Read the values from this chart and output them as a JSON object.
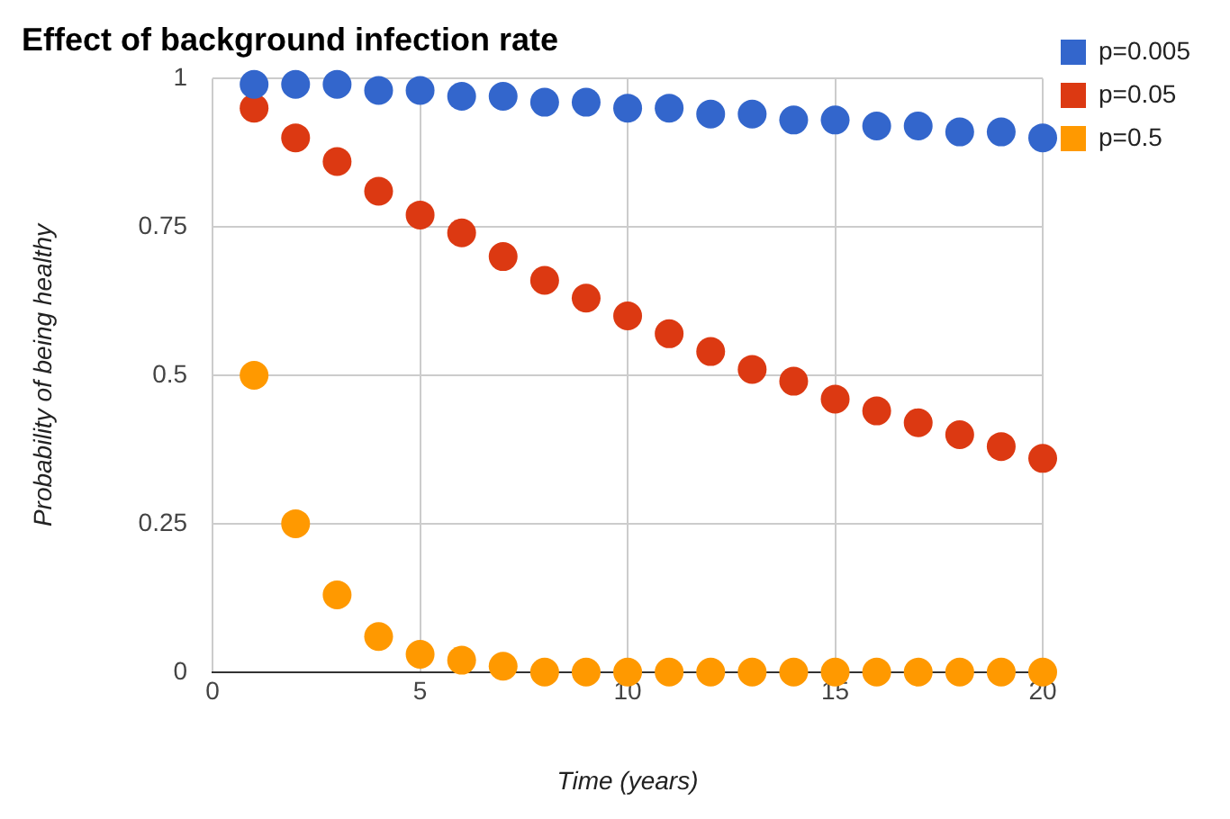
{
  "chart_data": {
    "type": "scatter",
    "title": "Effect of background infection rate",
    "xlabel": "Time (years)",
    "ylabel": "Probability of being healthy",
    "x": [
      1,
      2,
      3,
      4,
      5,
      6,
      7,
      8,
      9,
      10,
      11,
      12,
      13,
      14,
      15,
      16,
      17,
      18,
      19,
      20
    ],
    "series": [
      {
        "name": "p=0.005",
        "color": "#3366cc",
        "values": [
          0.99,
          0.99,
          0.99,
          0.98,
          0.98,
          0.97,
          0.97,
          0.96,
          0.96,
          0.95,
          0.95,
          0.94,
          0.94,
          0.93,
          0.93,
          0.92,
          0.92,
          0.91,
          0.91,
          0.9
        ]
      },
      {
        "name": "p=0.05",
        "color": "#dc3912",
        "values": [
          0.95,
          0.9,
          0.86,
          0.81,
          0.77,
          0.74,
          0.7,
          0.66,
          0.63,
          0.6,
          0.57,
          0.54,
          0.51,
          0.49,
          0.46,
          0.44,
          0.42,
          0.4,
          0.38,
          0.36
        ]
      },
      {
        "name": "p=0.5",
        "color": "#ff9900",
        "values": [
          0.5,
          0.25,
          0.13,
          0.06,
          0.03,
          0.02,
          0.01,
          0,
          0,
          0,
          0,
          0,
          0,
          0,
          0,
          0,
          0,
          0,
          0,
          0
        ]
      }
    ],
    "xlim": [
      0,
      20
    ],
    "xticks": [
      0,
      5,
      10,
      15,
      20
    ],
    "ylim": [
      0,
      1
    ],
    "yticks": [
      0,
      0.25,
      0.5,
      0.75,
      1
    ],
    "grid": true,
    "legend": "top right",
    "marker": "circle"
  }
}
